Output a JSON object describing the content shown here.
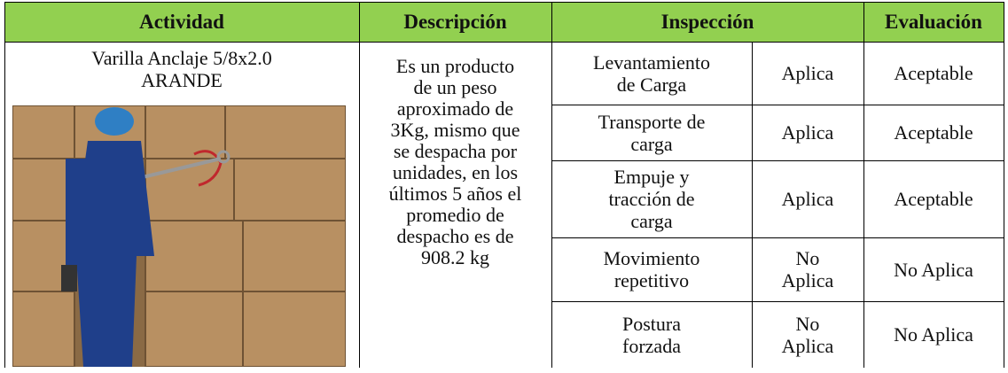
{
  "table": {
    "header": [
      "Actividad",
      "Descripción",
      "Inspección",
      "Evaluación"
    ],
    "activity": [
      "Varilla Anclaje 5/8x2.0",
      "ARANDE"
    ],
    "description": [
      "Es un producto",
      "de un peso",
      "aproximado de",
      "3Kg, mismo que",
      "se despacha por",
      "unidades, en los",
      "últimos 5 años el",
      "promedio de",
      "despacho es de",
      "908.2 kg"
    ],
    "rows": [
      {
        "inspection": [
          "Levantamiento",
          "de Carga"
        ],
        "applies": [
          "Aplica"
        ],
        "evaluation": "Aceptable"
      },
      {
        "inspection": [
          "Transporte de",
          "carga"
        ],
        "applies": [
          "Aplica"
        ],
        "evaluation": "Aceptable"
      },
      {
        "inspection": [
          "Empuje y",
          "tracción de",
          "carga"
        ],
        "applies": [
          "Aplica"
        ],
        "evaluation": "Aceptable"
      },
      {
        "inspection": [
          "Movimiento",
          "repetitivo"
        ],
        "applies": [
          "No",
          "Aplica"
        ],
        "evaluation": "No Aplica"
      },
      {
        "inspection": [
          "Postura",
          "forzada"
        ],
        "applies": [
          "No",
          "Aplica"
        ],
        "evaluation": "No Aplica"
      }
    ]
  }
}
